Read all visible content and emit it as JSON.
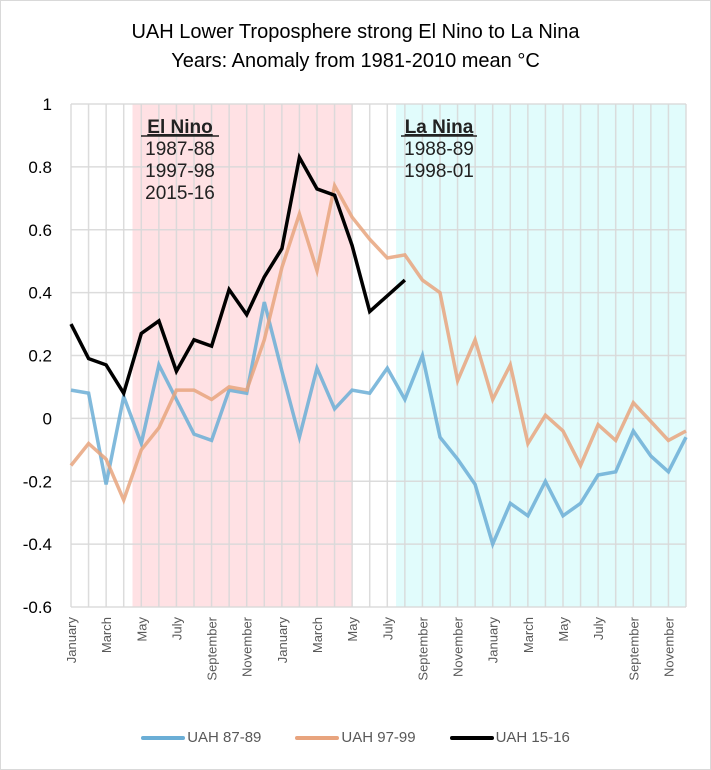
{
  "chart_data": {
    "type": "line",
    "title": "UAH Lower Troposphere  strong El Nino to La Nina",
    "subtitle": "Years: Anomaly  from 1981-2010 mean °C",
    "xlabel": "",
    "ylabel": "",
    "ylim": [
      -0.6,
      1.0
    ],
    "yticks": [
      "1",
      "0.8",
      "0.6",
      "0.4",
      "0.2",
      "0",
      "-0.2",
      "-0.4",
      "-0.6"
    ],
    "ytick_values": [
      1,
      0.8,
      0.6,
      0.4,
      0.2,
      0,
      -0.2,
      -0.4,
      -0.6
    ],
    "grid": true,
    "legend_position": "bottom",
    "x": [
      "January",
      "February",
      "March",
      "April",
      "May",
      "June",
      "July",
      "August",
      "September",
      "October",
      "November",
      "December",
      "January",
      "February",
      "March",
      "April",
      "May",
      "June",
      "July",
      "August",
      "September",
      "October",
      "November",
      "December",
      "January",
      "February",
      "March",
      "April",
      "May",
      "June",
      "July",
      "August",
      "September",
      "October",
      "November",
      "December"
    ],
    "xtick_labels_shown": [
      "January",
      "March",
      "May",
      "July",
      "September",
      "November",
      "January",
      "March",
      "May",
      "July",
      "September",
      "November",
      "January",
      "March",
      "May",
      "July",
      "September",
      "November"
    ],
    "series": [
      {
        "name": "UAH 87-89",
        "color": "#6baed6",
        "values": [
          0.09,
          0.08,
          -0.21,
          0.07,
          -0.08,
          0.17,
          0.06,
          -0.05,
          -0.07,
          0.09,
          0.08,
          0.37,
          0.15,
          -0.06,
          0.16,
          0.03,
          0.09,
          0.08,
          0.16,
          0.06,
          0.2,
          -0.06,
          -0.13,
          -0.21,
          -0.4,
          -0.27,
          -0.31,
          -0.2,
          -0.31,
          -0.27,
          -0.18,
          -0.17,
          -0.04,
          -0.12,
          -0.17,
          -0.06
        ]
      },
      {
        "name": "UAH 97-99",
        "color": "#e8a47e",
        "values": [
          -0.15,
          -0.08,
          -0.13,
          -0.26,
          -0.1,
          -0.03,
          0.09,
          0.09,
          0.06,
          0.1,
          0.09,
          0.25,
          0.48,
          0.65,
          0.47,
          0.74,
          0.64,
          0.57,
          0.51,
          0.52,
          0.44,
          0.4,
          0.12,
          0.25,
          0.06,
          0.17,
          -0.08,
          0.01,
          -0.04,
          -0.15,
          -0.02,
          -0.07,
          0.05,
          -0.01,
          -0.07,
          -0.04
        ]
      },
      {
        "name": "UAH 15-16",
        "color": "#000000",
        "values": [
          0.3,
          0.19,
          0.17,
          0.08,
          0.27,
          0.31,
          0.15,
          0.25,
          0.23,
          0.41,
          0.33,
          0.45,
          0.54,
          0.83,
          0.73,
          0.71,
          0.55,
          0.34,
          0.39,
          0.44
        ]
      }
    ],
    "annotations": [
      {
        "heading": "El Nino",
        "lines": [
          "1987-88",
          "1997-98",
          "2015-16"
        ],
        "shade_color": "#ffe1e4",
        "from_month_index": 3.5,
        "to_month_index": 16
      },
      {
        "heading": "La Nina",
        "lines": [
          "1988-89",
          "1998-01"
        ],
        "shade_color": "#e1fcfc",
        "from_month_index": 18.5,
        "to_month_index": 35
      }
    ]
  }
}
